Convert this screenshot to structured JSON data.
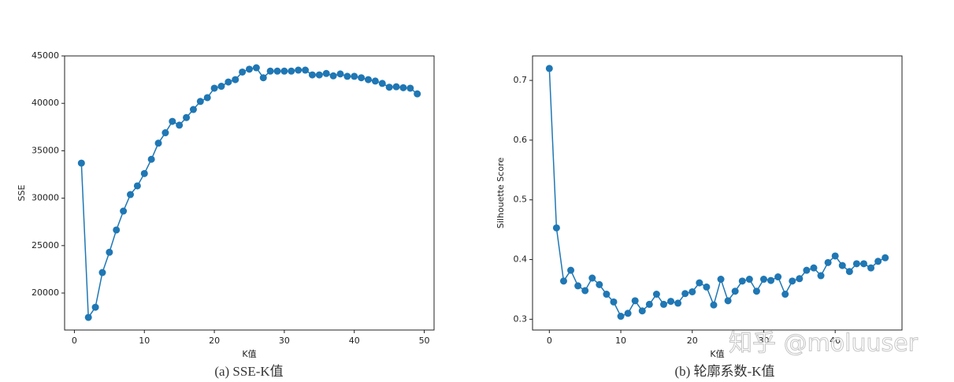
{
  "chart_data": [
    {
      "type": "line",
      "xlabel": "K值",
      "ylabel": "SSE",
      "caption": "(a) SSE-K值",
      "color": "#1f77b4",
      "x": [
        1,
        2,
        3,
        4,
        5,
        6,
        7,
        8,
        9,
        10,
        11,
        12,
        13,
        14,
        15,
        16,
        17,
        18,
        19,
        20,
        21,
        22,
        23,
        24,
        25,
        26,
        27,
        28,
        29,
        30,
        31,
        32,
        33,
        34,
        35,
        36,
        37,
        38,
        39,
        40,
        41,
        42,
        43,
        44,
        45,
        46,
        47,
        48,
        49
      ],
      "values": [
        33700,
        17430,
        18500,
        22160,
        24300,
        26650,
        28640,
        30380,
        31300,
        32600,
        34100,
        35800,
        36900,
        38100,
        37700,
        38500,
        39350,
        40200,
        40600,
        41600,
        41800,
        42250,
        42500,
        43300,
        43600,
        43750,
        42700,
        43400,
        43400,
        43400,
        43400,
        43500,
        43500,
        43000,
        43000,
        43150,
        42900,
        43100,
        42850,
        42850,
        42700,
        42500,
        42350,
        42100,
        41700,
        41750,
        41650,
        41600,
        41000
      ],
      "xlim": [
        -1.4,
        51.4
      ],
      "ylim": [
        16100,
        45000
      ],
      "xticks": [
        0,
        10,
        20,
        30,
        40,
        50
      ],
      "yticks": [
        20000,
        25000,
        30000,
        35000,
        40000,
        45000
      ]
    },
    {
      "type": "line",
      "xlabel": "K值",
      "ylabel": "Silhouette Score",
      "caption": "(b) 轮廓系数-K值",
      "color": "#1f77b4",
      "x": [
        0,
        1,
        2,
        3,
        4,
        5,
        6,
        7,
        8,
        9,
        10,
        11,
        12,
        13,
        14,
        15,
        16,
        17,
        18,
        19,
        20,
        21,
        22,
        23,
        24,
        25,
        26,
        27,
        28,
        29,
        30,
        31,
        32,
        33,
        34,
        35,
        36,
        37,
        38,
        39,
        40,
        41,
        42,
        43,
        44,
        45,
        46,
        47
      ],
      "values": [
        0.72,
        0.453,
        0.364,
        0.382,
        0.356,
        0.348,
        0.369,
        0.358,
        0.342,
        0.329,
        0.305,
        0.31,
        0.331,
        0.314,
        0.325,
        0.342,
        0.325,
        0.33,
        0.327,
        0.343,
        0.346,
        0.361,
        0.354,
        0.324,
        0.367,
        0.331,
        0.347,
        0.364,
        0.367,
        0.347,
        0.367,
        0.365,
        0.371,
        0.342,
        0.364,
        0.368,
        0.382,
        0.386,
        0.373,
        0.395,
        0.406,
        0.39,
        0.38,
        0.393,
        0.393,
        0.386,
        0.397,
        0.403
      ],
      "xlim": [
        -2.35,
        49.35
      ],
      "ylim": [
        0.282,
        0.741
      ],
      "xticks": [
        0,
        10,
        20,
        30,
        40
      ],
      "yticks": [
        0.3,
        0.4,
        0.5,
        0.6,
        0.7
      ]
    }
  ],
  "watermark": "知乎 @moluuser"
}
